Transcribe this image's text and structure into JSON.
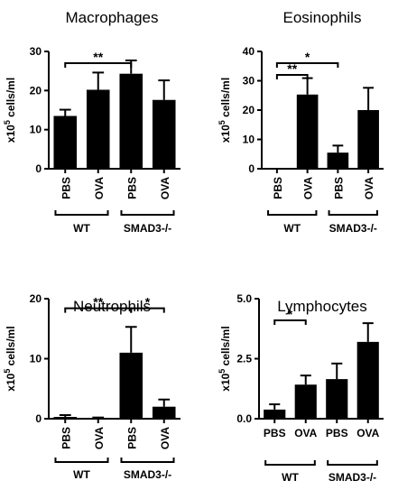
{
  "chart_data": [
    {
      "type": "bar",
      "title": "Macrophages",
      "ylabel_prefix": "x10",
      "ylabel_exp": "5",
      "ylabel_suffix": " cells/ml",
      "ylim": [
        0,
        30
      ],
      "yticks": [
        "0",
        "10",
        "20",
        "30"
      ],
      "categories": [
        "PBS",
        "OVA",
        "PBS",
        "OVA"
      ],
      "groups": [
        {
          "label": "WT",
          "bars": [
            0,
            1
          ]
        },
        {
          "label": "SMAD3-/-",
          "bars": [
            2,
            3
          ]
        }
      ],
      "values": [
        13.5,
        20.2,
        24.3,
        17.6
      ],
      "errors": [
        1.6,
        4.4,
        3.4,
        5.0
      ],
      "significance": [
        {
          "from": 0,
          "to": 2,
          "label": "**",
          "y": 27
        }
      ]
    },
    {
      "type": "bar",
      "title": "Eosinophils",
      "ylabel_prefix": "x10",
      "ylabel_exp": "5",
      "ylabel_suffix": " cells/ml",
      "ylim": [
        0,
        40
      ],
      "yticks": [
        "0",
        "10",
        "20",
        "30",
        "40"
      ],
      "categories": [
        "PBS",
        "OVA",
        "PBS",
        "OVA"
      ],
      "groups": [
        {
          "label": "WT",
          "bars": [
            0,
            1
          ]
        },
        {
          "label": "SMAD3-/-",
          "bars": [
            2,
            3
          ]
        }
      ],
      "values": [
        0,
        25.3,
        5.5,
        20.0
      ],
      "errors": [
        0,
        5.6,
        2.4,
        7.6
      ],
      "significance": [
        {
          "from": 0,
          "to": 2,
          "label": "*",
          "y": 36
        },
        {
          "from": 0,
          "to": 1,
          "label": "**",
          "y": 32
        }
      ]
    },
    {
      "type": "bar",
      "title": "Neutrophils",
      "ylabel_prefix": "x10",
      "ylabel_exp": "5",
      "ylabel_suffix": " cells/ml",
      "ylim": [
        0,
        20
      ],
      "yticks": [
        "0",
        "10",
        "20"
      ],
      "categories": [
        "PBS",
        "OVA",
        "PBS",
        "OVA"
      ],
      "groups": [
        {
          "label": "WT",
          "bars": [
            0,
            1
          ]
        },
        {
          "label": "SMAD3-/-",
          "bars": [
            2,
            3
          ]
        }
      ],
      "values": [
        0.3,
        0.1,
        11.0,
        2.0
      ],
      "errors": [
        0.3,
        0.1,
        4.3,
        1.2
      ],
      "significance": [
        {
          "from": 0,
          "to": 2,
          "label": "**",
          "y": 18.4
        },
        {
          "from": 2,
          "to": 3,
          "label": "*",
          "y": 18.4
        }
      ]
    },
    {
      "type": "bar",
      "title": "Lymphocytes",
      "ylabel_prefix": "x10",
      "ylabel_exp": "5",
      "ylabel_suffix": " cells/ml",
      "ylim": [
        0,
        5
      ],
      "yticks": [
        "0.0",
        "2.5",
        "5.0"
      ],
      "categories": [
        "PBS",
        "OVA",
        "PBS",
        "OVA"
      ],
      "groups": [
        {
          "label": "WT",
          "bars": [
            0,
            1
          ]
        },
        {
          "label": "SMAD3-/-",
          "bars": [
            2,
            3
          ]
        }
      ],
      "values": [
        0.38,
        1.42,
        1.65,
        3.2
      ],
      "errors": [
        0.22,
        0.38,
        0.65,
        0.78
      ],
      "significance": [
        {
          "from": 0,
          "to": 1,
          "label": "*",
          "y": 4.1
        }
      ]
    }
  ]
}
